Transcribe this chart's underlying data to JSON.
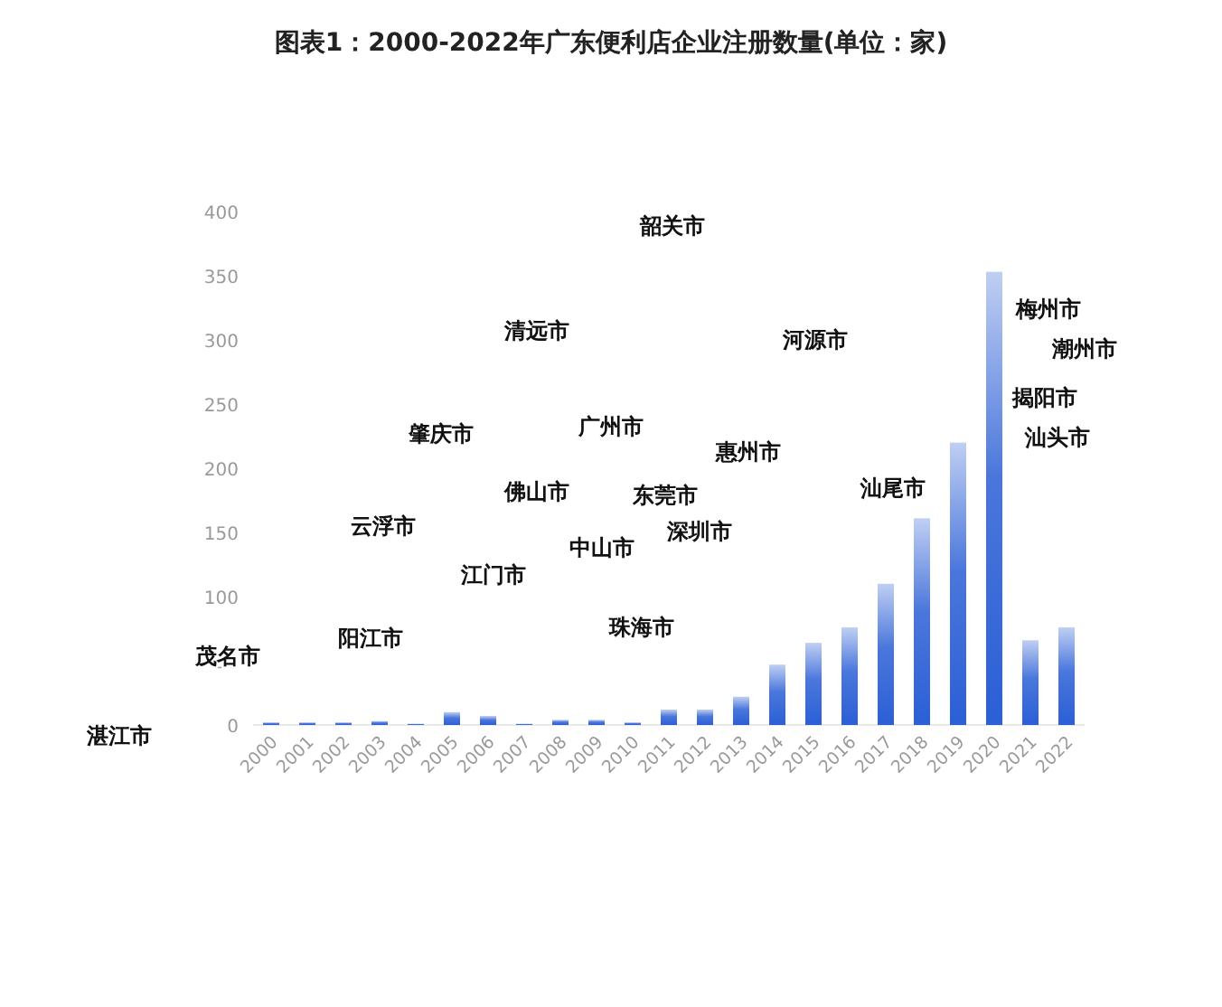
{
  "chart_data": {
    "type": "bar",
    "title": "图表1：2000-2022年广东便利店企业注册数量(单位：家)",
    "categories": [
      "2000",
      "2001",
      "2002",
      "2003",
      "2004",
      "2005",
      "2006",
      "2007",
      "2008",
      "2009",
      "2010",
      "2011",
      "2012",
      "2013",
      "2014",
      "2015",
      "2016",
      "2017",
      "2018",
      "2019",
      "2020",
      "2021",
      "2022"
    ],
    "values": [
      2,
      2,
      2,
      3,
      1,
      10,
      7,
      1,
      4,
      4,
      2,
      12,
      12,
      22,
      47,
      64,
      76,
      110,
      161,
      220,
      353,
      66,
      76
    ],
    "color": "#2b5fd6",
    "ylim": [
      0,
      400
    ],
    "yticks": [
      0,
      50,
      100,
      150,
      200,
      250,
      300,
      350,
      400
    ],
    "grid": false,
    "annotations": [
      "韶关市",
      "清远市",
      "河源市",
      "梅州市",
      "潮州市",
      "揭阳市",
      "汕头市",
      "肇庆市",
      "广州市",
      "惠州市",
      "佛山市",
      "东莞市",
      "云浮市",
      "汕尾市",
      "中山市",
      "深圳市",
      "江门市",
      "珠海市",
      "阳江市",
      "茂名市",
      "湛江市"
    ]
  }
}
